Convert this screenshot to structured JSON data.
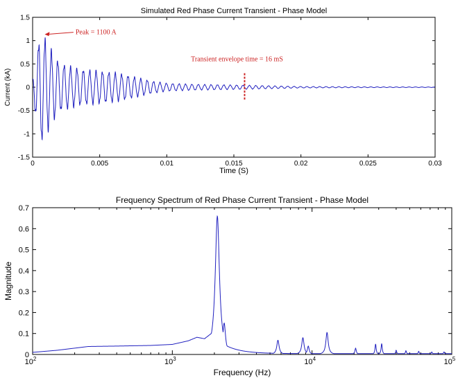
{
  "chart_data": [
    {
      "type": "line",
      "title": "Simulated Red Phase Current Transient - Phase Model",
      "xlabel": "Time (S)",
      "ylabel": "Current (kA)",
      "xscale": "linear",
      "xlim": [
        0,
        0.03
      ],
      "ylim": [
        -1.5,
        1.5
      ],
      "xticks": [
        0,
        0.005,
        0.01,
        0.015,
        0.02,
        0.025,
        0.03
      ],
      "xtick_labels": [
        "0",
        "0.005",
        "0.01",
        "0.015",
        "0.02",
        "0.025",
        "0.03"
      ],
      "yticks": [
        -1.5,
        -1,
        -0.5,
        0,
        0.5,
        1,
        1.5
      ],
      "ytick_labels": [
        "-1.5",
        "-1",
        "-0.5",
        "0",
        "0.5",
        "1",
        "1.5"
      ],
      "grid": false,
      "series_color": "#1f1fbf",
      "envelope": {
        "t": [
          0,
          0.0006,
          0.001,
          0.0015,
          0.002,
          0.003,
          0.004,
          0.005,
          0.006,
          0.007,
          0.008,
          0.009,
          0.01,
          0.012,
          0.014,
          0.016,
          0.02,
          0.025,
          0.03
        ],
        "amplitude": [
          0.2,
          1.15,
          0.95,
          0.7,
          0.5,
          0.4,
          0.35,
          0.33,
          0.3,
          0.25,
          0.18,
          0.12,
          0.08,
          0.06,
          0.05,
          0.04,
          0.015,
          0.008,
          0.005
        ]
      },
      "oscillation_frequency_hz": 2100,
      "annotations": [
        {
          "text": "Peak = 1100 A",
          "x": 0.0008,
          "y": 1.15,
          "text_x": 0.0032,
          "text_y": 1.15,
          "color": "#cc2222",
          "arrow": true
        },
        {
          "text": "Transient envelope time = 16 mS",
          "x": 0.0158,
          "y": 0.0,
          "text_x": 0.0118,
          "text_y": 0.6,
          "color": "#cc2222",
          "marker": "dashed-vertical",
          "marker_range": [
            -0.28,
            0.3
          ]
        }
      ]
    },
    {
      "type": "line",
      "title": "Frequency Spectrum of Red Phase Current Transient - Phase Model",
      "xlabel": "Frequency (Hz)",
      "ylabel": "Magnitude",
      "xscale": "log",
      "xlim": [
        100,
        100000
      ],
      "ylim": [
        0,
        0.7
      ],
      "xticks": [
        100,
        1000,
        10000,
        100000
      ],
      "xtick_labels": [
        "10^2",
        "10^3",
        "10^4",
        "10^5"
      ],
      "yticks": [
        0,
        0.1,
        0.2,
        0.3,
        0.4,
        0.5,
        0.6,
        0.7
      ],
      "ytick_labels": [
        "0",
        "0.1",
        "0.2",
        "0.3",
        "0.4",
        "0.5",
        "0.6",
        "0.7"
      ],
      "grid": false,
      "series_color": "#1f1fbf",
      "baseline": {
        "x": [
          100,
          150,
          250,
          400,
          700,
          1000,
          1300,
          1500,
          1700,
          1900
        ],
        "y": [
          0.01,
          0.02,
          0.038,
          0.04,
          0.043,
          0.048,
          0.065,
          0.082,
          0.075,
          0.1
        ]
      },
      "peaks": [
        {
          "x": 2100,
          "y": 0.66,
          "width": 0.018
        },
        {
          "x": 2350,
          "y": 0.15,
          "width": 0.012
        },
        {
          "x": 5700,
          "y": 0.068,
          "width": 0.01
        },
        {
          "x": 8600,
          "y": 0.08,
          "width": 0.01
        },
        {
          "x": 9400,
          "y": 0.04,
          "width": 0.008
        },
        {
          "x": 12800,
          "y": 0.105,
          "width": 0.01
        },
        {
          "x": 20500,
          "y": 0.03,
          "width": 0.006
        },
        {
          "x": 28500,
          "y": 0.05,
          "width": 0.005
        },
        {
          "x": 31500,
          "y": 0.052,
          "width": 0.005
        },
        {
          "x": 40000,
          "y": 0.02,
          "width": 0.005
        },
        {
          "x": 47000,
          "y": 0.018,
          "width": 0.005
        },
        {
          "x": 58000,
          "y": 0.015,
          "width": 0.005
        },
        {
          "x": 72000,
          "y": 0.012,
          "width": 0.005
        },
        {
          "x": 88000,
          "y": 0.012,
          "width": 0.005
        }
      ]
    }
  ]
}
